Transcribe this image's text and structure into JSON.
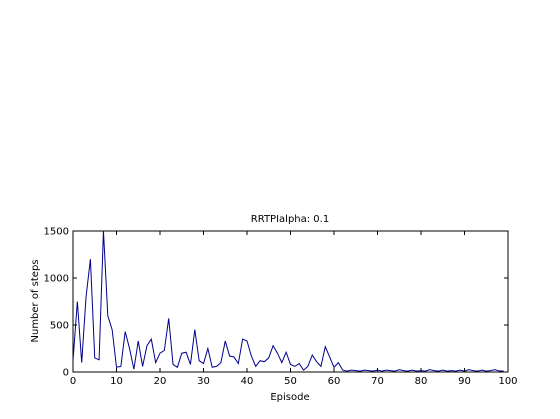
{
  "chart_data": {
    "type": "line",
    "title": "RRTPIalpha: 0.1",
    "xlabel": "Episode",
    "ylabel": "Number of steps",
    "xlim": [
      0,
      100
    ],
    "ylim": [
      0,
      1500
    ],
    "xticks": [
      0,
      10,
      20,
      30,
      40,
      50,
      60,
      70,
      80,
      90,
      100
    ],
    "yticks": [
      0,
      500,
      1000,
      1500
    ],
    "grid": false,
    "line_color": "#00008b",
    "series": [
      {
        "x": [
          0,
          1,
          2,
          3,
          4,
          5,
          6,
          7,
          8,
          9,
          10,
          11,
          12,
          13,
          14,
          15,
          16,
          17,
          18,
          19,
          20,
          21,
          22,
          23,
          24,
          25,
          26,
          27,
          28,
          29,
          30,
          31,
          32,
          33,
          34,
          35,
          36,
          37,
          38,
          39,
          40,
          41,
          42,
          43,
          44,
          45,
          46,
          47,
          48,
          49,
          50,
          51,
          52,
          53,
          54,
          55,
          56,
          57,
          58,
          59,
          60,
          61,
          62,
          63,
          64,
          65,
          66,
          67,
          68,
          69,
          70,
          71,
          72,
          73,
          74,
          75,
          76,
          77,
          78,
          79,
          80,
          81,
          82,
          83,
          84,
          85,
          86,
          87,
          88,
          89,
          90,
          91,
          92,
          93,
          94,
          95,
          96,
          97,
          98,
          99
        ],
        "values": [
          120,
          750,
          100,
          800,
          1200,
          150,
          130,
          1500,
          600,
          450,
          50,
          60,
          430,
          250,
          30,
          330,
          60,
          280,
          350,
          100,
          200,
          230,
          570,
          80,
          50,
          200,
          210,
          80,
          450,
          120,
          90,
          250,
          50,
          60,
          100,
          330,
          170,
          160,
          90,
          350,
          330,
          170,
          60,
          120,
          110,
          150,
          280,
          200,
          100,
          210,
          80,
          60,
          90,
          20,
          60,
          180,
          110,
          60,
          270,
          160,
          50,
          100,
          20,
          10,
          20,
          15,
          10,
          20,
          15,
          10,
          20,
          10,
          20,
          15,
          10,
          25,
          15,
          10,
          20,
          10,
          15,
          10,
          25,
          15,
          10,
          20,
          10,
          15,
          10,
          20,
          10,
          25,
          15,
          10,
          20,
          10,
          15,
          25,
          10,
          10
        ]
      }
    ]
  }
}
